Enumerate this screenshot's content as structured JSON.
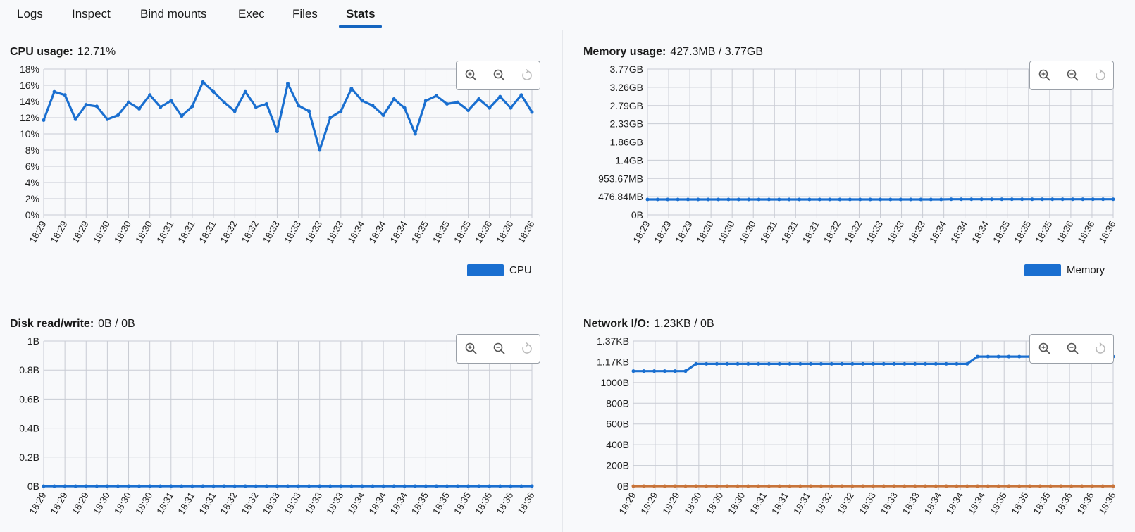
{
  "tabs": [
    {
      "label": "Logs",
      "active": false
    },
    {
      "label": "Inspect",
      "active": false
    },
    {
      "label": "Bind mounts",
      "active": false
    },
    {
      "label": "Exec",
      "active": false
    },
    {
      "label": "Files",
      "active": false
    },
    {
      "label": "Stats",
      "active": true
    }
  ],
  "colors": {
    "accent": "#1565c0",
    "series_blue": "#1a6fd0",
    "series_orange": "#c8743a",
    "grid": "#c9ccd4"
  },
  "panels": {
    "cpu": {
      "label": "CPU usage:",
      "value": "12.71%",
      "legend": "CPU",
      "toolbox_icons": [
        "zoom-in-icon",
        "zoom-out-icon",
        "reset-icon"
      ]
    },
    "memory": {
      "label": "Memory usage:",
      "value": "427.3MB / 3.77GB",
      "legend": "Memory",
      "toolbox_icons": [
        "zoom-in-icon",
        "zoom-out-icon",
        "reset-icon"
      ]
    },
    "disk": {
      "label": "Disk read/write:",
      "value": "0B / 0B",
      "toolbox_icons": [
        "zoom-in-icon",
        "zoom-out-icon",
        "reset-icon"
      ]
    },
    "network": {
      "label": "Network I/O:",
      "value": "1.23KB / 0B",
      "toolbox_icons": [
        "zoom-in-icon",
        "zoom-out-icon",
        "reset-icon"
      ]
    }
  },
  "chart_data": [
    {
      "id": "cpu",
      "type": "line",
      "ylabel": "",
      "xlabel": "",
      "ylim": [
        0,
        18
      ],
      "grid": true,
      "legend_position": "bottom-right",
      "y_ticks": [
        "0%",
        "2%",
        "4%",
        "6%",
        "8%",
        "10%",
        "12%",
        "14%",
        "16%",
        "18%"
      ],
      "x_ticks": [
        "18:29",
        "18:29",
        "18:29",
        "18:30",
        "18:30",
        "18:30",
        "18:31",
        "18:31",
        "18:31",
        "18:32",
        "18:32",
        "18:33",
        "18:33",
        "18:33",
        "18:33",
        "18:34",
        "18:34",
        "18:34",
        "18:35",
        "18:35",
        "18:35",
        "18:36",
        "18:36",
        "18:36"
      ],
      "series": [
        {
          "name": "CPU",
          "color": "#1a6fd0",
          "values": [
            11.7,
            15.2,
            14.8,
            11.8,
            13.6,
            13.4,
            11.8,
            12.3,
            13.9,
            13.1,
            14.8,
            13.3,
            14.1,
            12.2,
            13.4,
            16.4,
            15.2,
            13.9,
            12.8,
            15.2,
            13.3,
            13.7,
            10.3,
            16.2,
            13.5,
            12.8,
            8.0,
            12.0,
            12.8,
            15.6,
            14.1,
            13.5,
            12.3,
            14.3,
            13.2,
            10.0,
            14.1,
            14.7,
            13.7,
            13.9,
            12.9,
            14.3,
            13.2,
            14.6,
            13.2,
            14.8,
            12.7
          ]
        }
      ]
    },
    {
      "id": "memory",
      "type": "line",
      "ylabel": "",
      "xlabel": "",
      "ylim": [
        0,
        8
      ],
      "grid": true,
      "legend_position": "bottom-right",
      "y_ticks": [
        "0B",
        "476.84MB",
        "953.67MB",
        "1.4GB",
        "1.86GB",
        "2.33GB",
        "2.79GB",
        "3.26GB",
        "3.77GB"
      ],
      "x_ticks": [
        "18:29",
        "18:29",
        "18:29",
        "18:30",
        "18:30",
        "18:30",
        "18:31",
        "18:31",
        "18:31",
        "18:32",
        "18:32",
        "18:33",
        "18:33",
        "18:33",
        "18:34",
        "18:34",
        "18:34",
        "18:35",
        "18:35",
        "18:35",
        "18:36",
        "18:36",
        "18:36"
      ],
      "series": [
        {
          "name": "Memory",
          "color": "#1a6fd0",
          "values": [
            0.85,
            0.85,
            0.85,
            0.85,
            0.85,
            0.85,
            0.85,
            0.85,
            0.85,
            0.85,
            0.85,
            0.85,
            0.85,
            0.85,
            0.85,
            0.85,
            0.85,
            0.85,
            0.85,
            0.85,
            0.85,
            0.85,
            0.85,
            0.85,
            0.85,
            0.85,
            0.85,
            0.85,
            0.85,
            0.85,
            0.86,
            0.86,
            0.86,
            0.86,
            0.86,
            0.86,
            0.86,
            0.86,
            0.86,
            0.86,
            0.86,
            0.86,
            0.86,
            0.86,
            0.86,
            0.86,
            0.86
          ]
        }
      ]
    },
    {
      "id": "disk",
      "type": "line",
      "ylabel": "",
      "xlabel": "",
      "ylim": [
        0,
        1
      ],
      "grid": true,
      "y_ticks": [
        "0B",
        "0.2B",
        "0.4B",
        "0.6B",
        "0.8B",
        "1B"
      ],
      "x_ticks": [
        "18:29",
        "18:29",
        "18:29",
        "18:30",
        "18:30",
        "18:30",
        "18:31",
        "18:31",
        "18:31",
        "18:32",
        "18:32",
        "18:33",
        "18:33",
        "18:33",
        "18:33",
        "18:34",
        "18:34",
        "18:34",
        "18:35",
        "18:35",
        "18:35",
        "18:36",
        "18:36",
        "18:36"
      ],
      "series": [
        {
          "color": "#1a6fd0",
          "values": [
            0,
            0,
            0,
            0,
            0,
            0,
            0,
            0,
            0,
            0,
            0,
            0,
            0,
            0,
            0,
            0,
            0,
            0,
            0,
            0,
            0,
            0,
            0,
            0,
            0,
            0,
            0,
            0,
            0,
            0,
            0,
            0,
            0,
            0,
            0,
            0,
            0,
            0,
            0,
            0,
            0,
            0,
            0,
            0,
            0,
            0,
            0
          ]
        }
      ]
    },
    {
      "id": "network",
      "type": "line",
      "ylabel": "",
      "xlabel": "",
      "ylim": [
        0,
        1400
      ],
      "grid": true,
      "y_ticks": [
        "0B",
        "200B",
        "400B",
        "600B",
        "800B",
        "1000B",
        "1.17KB",
        "1.37KB"
      ],
      "x_ticks": [
        "18:29",
        "18:29",
        "18:29",
        "18:30",
        "18:30",
        "18:30",
        "18:31",
        "18:31",
        "18:31",
        "18:32",
        "18:32",
        "18:33",
        "18:33",
        "18:33",
        "18:34",
        "18:34",
        "18:34",
        "18:35",
        "18:35",
        "18:35",
        "18:36",
        "18:36",
        "18:36"
      ],
      "series": [
        {
          "color": "#1a6fd0",
          "values": [
            1110,
            1110,
            1110,
            1110,
            1110,
            1110,
            1180,
            1180,
            1180,
            1180,
            1180,
            1180,
            1180,
            1180,
            1180,
            1180,
            1180,
            1180,
            1180,
            1180,
            1180,
            1180,
            1180,
            1180,
            1180,
            1180,
            1180,
            1180,
            1180,
            1180,
            1180,
            1180,
            1180,
            1250,
            1250,
            1250,
            1250,
            1250,
            1250,
            1250,
            1250,
            1250,
            1250,
            1250,
            1250,
            1250,
            1250
          ]
        },
        {
          "color": "#c8743a",
          "values": [
            0,
            0,
            0,
            0,
            0,
            0,
            0,
            0,
            0,
            0,
            0,
            0,
            0,
            0,
            0,
            0,
            0,
            0,
            0,
            0,
            0,
            0,
            0,
            0,
            0,
            0,
            0,
            0,
            0,
            0,
            0,
            0,
            0,
            0,
            0,
            0,
            0,
            0,
            0,
            0,
            0,
            0,
            0,
            0,
            0,
            0,
            0
          ]
        }
      ]
    }
  ]
}
